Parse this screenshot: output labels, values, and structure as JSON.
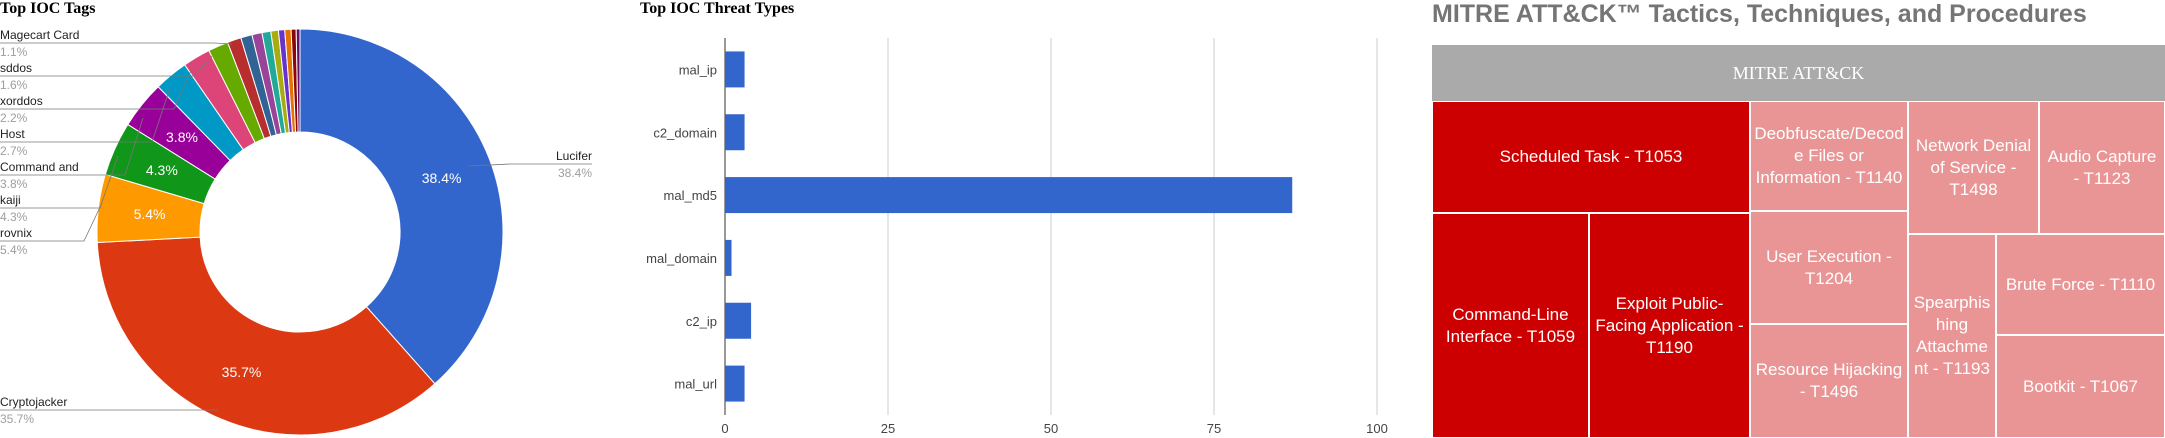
{
  "chart_data": [
    {
      "type": "pie",
      "donut": true,
      "title": "Top IOC Tags",
      "slices": [
        {
          "label": "Lucifer",
          "value": 38.4,
          "pct_label": "38.4%",
          "color": "#3366cc"
        },
        {
          "label": "Cryptojacker",
          "value": 35.7,
          "pct_label": "35.7%",
          "color": "#dc3912"
        },
        {
          "label": "rovnix",
          "value": 5.4,
          "pct_label": "5.4%",
          "color": "#ff9900"
        },
        {
          "label": "kaiji",
          "value": 4.3,
          "pct_label": "4.3%",
          "color": "#109618"
        },
        {
          "label": "Command and",
          "value": 3.8,
          "pct_label": "3.8%",
          "color": "#990099"
        },
        {
          "label": "Host",
          "value": 2.7,
          "pct_label": "2.7%",
          "color": "#0099c6"
        },
        {
          "label": "xorddos",
          "value": 2.2,
          "pct_label": "2.2%",
          "color": "#dd4477"
        },
        {
          "label": "sddos",
          "value": 1.6,
          "pct_label": "1.6%",
          "color": "#66aa00"
        },
        {
          "label": "Magecart Card",
          "value": 1.1,
          "pct_label": "1.1%",
          "color": "#b82e2e"
        },
        {
          "label": "",
          "value": 0.9,
          "color": "#316395"
        },
        {
          "label": "",
          "value": 0.8,
          "color": "#994499"
        },
        {
          "label": "",
          "value": 0.7,
          "color": "#22aa99"
        },
        {
          "label": "",
          "value": 0.6,
          "color": "#aaaa11"
        },
        {
          "label": "",
          "value": 0.5,
          "color": "#6633cc"
        },
        {
          "label": "",
          "value": 0.5,
          "color": "#e67300"
        },
        {
          "label": "",
          "value": 0.4,
          "color": "#8b0707"
        },
        {
          "label": "",
          "value": 0.3,
          "color": "#651067"
        }
      ],
      "callouts": [
        {
          "label": "Lucifer",
          "pct": "38.4%"
        },
        {
          "label": "Cryptojacker",
          "pct": "35.7%"
        },
        {
          "label": "rovnix",
          "pct": "5.4%"
        },
        {
          "label": "kaiji",
          "pct": "4.3%"
        },
        {
          "label": "Command and",
          "pct": "3.8%"
        },
        {
          "label": "Host",
          "pct": "2.7%"
        },
        {
          "label": "xorddos",
          "pct": "2.2%"
        },
        {
          "label": "sddos",
          "pct": "1.6%"
        },
        {
          "label": "Magecart Card",
          "pct": "1.1%"
        }
      ]
    },
    {
      "type": "bar",
      "orientation": "horizontal",
      "title": "Top IOC Threat Types",
      "categories": [
        "mal_ip",
        "c2_domain",
        "mal_md5",
        "mal_domain",
        "c2_ip",
        "mal_url"
      ],
      "values": [
        3,
        3,
        87,
        1,
        4,
        3
      ],
      "xlim": [
        0,
        100
      ],
      "xticks": [
        0,
        25,
        50,
        75,
        100
      ],
      "grid": true,
      "bar_color": "#3366cc"
    },
    {
      "type": "treemap",
      "title": "MITRE ATT&CK™ Tactics, Techniques, and Procedures",
      "root": "MITRE ATT&CK",
      "tiles": [
        {
          "label": "Scheduled Task - T1053",
          "shade": "dark"
        },
        {
          "label": "Command-Line Interface - T1059",
          "shade": "dark"
        },
        {
          "label": "Exploit Public-Facing Application - T1190",
          "shade": "dark"
        },
        {
          "label": "Deobfuscate/Decode Files or Information - T1140",
          "shade": "light"
        },
        {
          "label": "User Execution - T1204",
          "shade": "light"
        },
        {
          "label": "Resource Hijacking - T1496",
          "shade": "light"
        },
        {
          "label": "Network Denial of Service - T1498",
          "shade": "light"
        },
        {
          "label": "Audio Capture - T1123",
          "shade": "light"
        },
        {
          "label": "Spearphishing Attachment - T1193",
          "shade": "light"
        },
        {
          "label": "Brute Force - T1110",
          "shade": "light"
        },
        {
          "label": "Bootkit - T1067",
          "shade": "light"
        }
      ]
    }
  ]
}
